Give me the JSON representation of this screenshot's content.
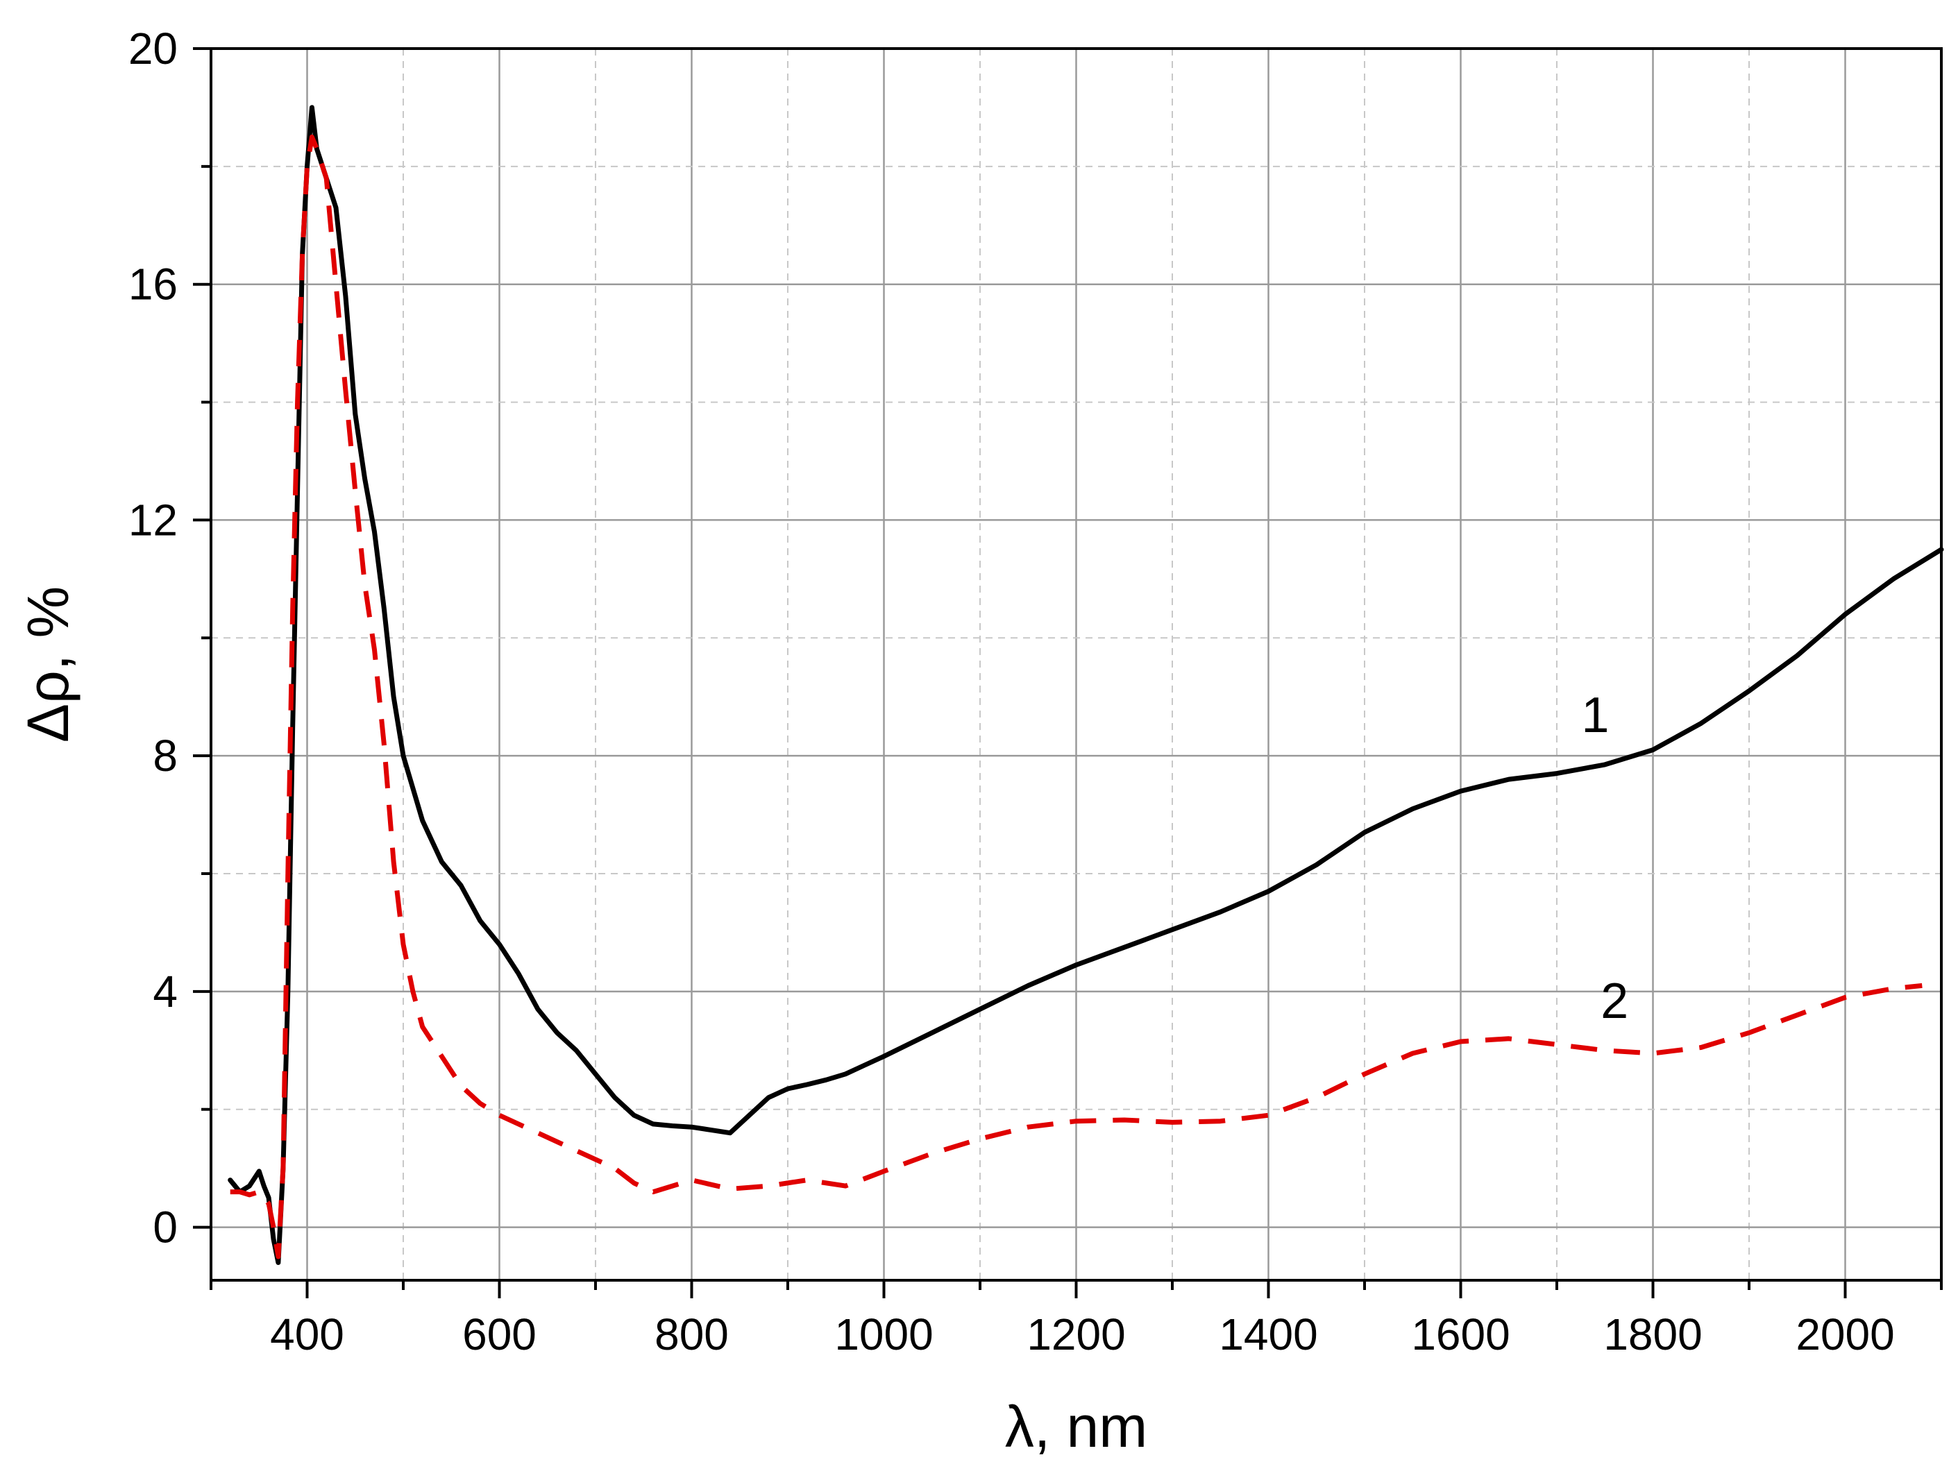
{
  "chart_data": {
    "type": "line",
    "xlabel": "λ, nm",
    "ylabel": "Δρ, %",
    "xlim": [
      300,
      2100
    ],
    "ylim": [
      -0.9,
      20
    ],
    "xticks": [
      400,
      600,
      800,
      1000,
      1200,
      1400,
      1600,
      1800,
      2000
    ],
    "xtick_labels": [
      "400",
      "600",
      "800",
      "1000",
      "1200",
      "1400",
      "1600",
      "1800",
      "2000"
    ],
    "xminor": [
      300,
      500,
      700,
      900,
      1100,
      1300,
      1500,
      1700,
      1900,
      2100
    ],
    "yticks": [
      0,
      4,
      8,
      12,
      16,
      20
    ],
    "ytick_labels": [
      "0",
      "4",
      "8",
      "12",
      "16",
      "20"
    ],
    "yminor": [
      2,
      6,
      10,
      14,
      18
    ],
    "grid": true,
    "series": [
      {
        "name": "1",
        "color": "#000000",
        "style": "solid",
        "x": [
          320,
          330,
          340,
          350,
          355,
          360,
          365,
          370,
          375,
          380,
          385,
          390,
          395,
          400,
          405,
          410,
          420,
          430,
          440,
          450,
          460,
          470,
          480,
          490,
          500,
          520,
          540,
          560,
          580,
          600,
          620,
          640,
          660,
          680,
          700,
          720,
          740,
          760,
          780,
          800,
          820,
          840,
          860,
          880,
          900,
          920,
          940,
          960,
          980,
          1000,
          1050,
          1100,
          1150,
          1200,
          1250,
          1300,
          1350,
          1400,
          1450,
          1500,
          1550,
          1600,
          1650,
          1700,
          1750,
          1800,
          1850,
          1900,
          1950,
          2000,
          2050,
          2100
        ],
        "y": [
          0.8,
          0.6,
          0.7,
          0.95,
          0.7,
          0.5,
          -0.2,
          -0.6,
          1.0,
          4.0,
          8.5,
          12.5,
          16.5,
          18.0,
          19.0,
          18.3,
          17.8,
          17.3,
          15.8,
          13.8,
          12.7,
          11.8,
          10.5,
          9.0,
          8.0,
          6.9,
          6.2,
          5.8,
          5.2,
          4.8,
          4.3,
          3.7,
          3.3,
          3.0,
          2.6,
          2.2,
          1.9,
          1.75,
          1.72,
          1.7,
          1.65,
          1.6,
          1.9,
          2.2,
          2.35,
          2.42,
          2.5,
          2.6,
          2.75,
          2.9,
          3.3,
          3.7,
          4.1,
          4.45,
          4.75,
          5.05,
          5.35,
          5.7,
          6.15,
          6.7,
          7.1,
          7.4,
          7.6,
          7.7,
          7.85,
          8.1,
          8.55,
          9.1,
          9.7,
          10.4,
          11.0,
          11.5
        ]
      },
      {
        "name": "2",
        "color": "#e00000",
        "style": "dashed",
        "x": [
          320,
          330,
          340,
          350,
          355,
          360,
          365,
          370,
          375,
          380,
          385,
          390,
          395,
          400,
          405,
          410,
          420,
          430,
          440,
          450,
          460,
          470,
          480,
          490,
          500,
          510,
          520,
          540,
          560,
          580,
          600,
          640,
          680,
          720,
          740,
          760,
          780,
          800,
          840,
          880,
          920,
          960,
          1000,
          1050,
          1100,
          1150,
          1200,
          1250,
          1300,
          1350,
          1400,
          1450,
          1500,
          1550,
          1600,
          1650,
          1700,
          1750,
          1800,
          1850,
          1900,
          1950,
          2000,
          2050,
          2080
        ],
        "y": [
          0.6,
          0.6,
          0.55,
          0.6,
          0.5,
          0.4,
          0.0,
          -0.5,
          1.0,
          6.0,
          10.5,
          14.0,
          16.5,
          18.0,
          18.5,
          18.3,
          17.8,
          16.0,
          14.2,
          12.5,
          10.9,
          9.8,
          8.2,
          6.2,
          4.8,
          4.0,
          3.4,
          2.9,
          2.4,
          2.1,
          1.9,
          1.6,
          1.3,
          1.0,
          0.75,
          0.6,
          0.7,
          0.8,
          0.65,
          0.7,
          0.8,
          0.7,
          0.95,
          1.25,
          1.5,
          1.7,
          1.8,
          1.82,
          1.78,
          1.8,
          1.9,
          2.2,
          2.6,
          2.95,
          3.15,
          3.2,
          3.1,
          3.0,
          2.95,
          3.05,
          3.3,
          3.6,
          3.9,
          4.05,
          4.1
        ]
      }
    ],
    "annotations": [
      {
        "text": "1",
        "x": 1740,
        "y": 8.4
      },
      {
        "text": "2",
        "x": 1760,
        "y": 3.55
      }
    ]
  }
}
